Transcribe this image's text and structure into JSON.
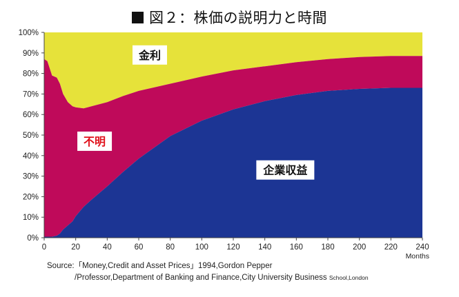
{
  "title": "図２：株価の説明力と時間",
  "source_line1": "Source:「Money,Credit and Asset Prices」1994,Gordon Pepper",
  "source_line2": "/Professor,Department of Banking and Finance,City University Business",
  "source_line2_small": "School,London",
  "colors": {
    "yellow": "#e6e23a",
    "magenta": "#bf0a5a",
    "blue": "#1c3594",
    "label_red": "#e0101a"
  },
  "chart_data": {
    "type": "area",
    "stacked": true,
    "x_unit": "Months",
    "xlabel": "Months",
    "ylabel": "",
    "xlim": [
      0,
      240
    ],
    "ylim": [
      0,
      100
    ],
    "x_ticks": [
      "0",
      "20",
      "40",
      "60",
      "80",
      "100",
      "120",
      "140",
      "160",
      "180",
      "200",
      "220",
      "240"
    ],
    "y_ticks": [
      "0%",
      "10%",
      "20%",
      "30%",
      "40%",
      "50%",
      "60%",
      "70%",
      "80%",
      "90%",
      "100%"
    ],
    "x_tick_values": [
      0,
      20,
      40,
      60,
      80,
      100,
      120,
      140,
      160,
      180,
      200,
      220,
      240
    ],
    "y_tick_values": [
      0,
      10,
      20,
      30,
      40,
      50,
      60,
      70,
      80,
      90,
      100
    ],
    "x": [
      0,
      2,
      5,
      8,
      10,
      12,
      15,
      18,
      20,
      25,
      30,
      40,
      50,
      60,
      80,
      100,
      120,
      140,
      160,
      180,
      200,
      220,
      240
    ],
    "series": [
      {
        "name": "企業収益",
        "color": "#1c3594",
        "cumulative_top": [
          0.5,
          0.5,
          0.5,
          1,
          2,
          4,
          6,
          8,
          10.5,
          15,
          18.5,
          25,
          32,
          38.5,
          49.5,
          57,
          62.5,
          66.5,
          69.5,
          71.5,
          72.5,
          73,
          73
        ]
      },
      {
        "name": "不明",
        "color": "#bf0a5a",
        "cumulative_top": [
          87,
          86,
          79,
          78,
          75,
          70,
          66,
          64,
          63.5,
          63,
          64,
          66,
          69,
          71.5,
          75,
          78.5,
          81.5,
          83.5,
          85.5,
          87,
          88,
          88.5,
          88.5
        ]
      },
      {
        "name": "金利",
        "color": "#e6e23a",
        "cumulative_top": [
          100,
          100,
          100,
          100,
          100,
          100,
          100,
          100,
          100,
          100,
          100,
          100,
          100,
          100,
          100,
          100,
          100,
          100,
          100,
          100,
          100,
          100,
          100
        ]
      }
    ],
    "annotations": [
      {
        "text": "金利",
        "series": "金利",
        "at_x": 67,
        "at_y": 89
      },
      {
        "text": "不明",
        "series": "不明",
        "at_x": 32,
        "at_y": 47
      },
      {
        "text": "企業収益",
        "series": "企業収益",
        "at_x": 153,
        "at_y": 33
      }
    ]
  }
}
